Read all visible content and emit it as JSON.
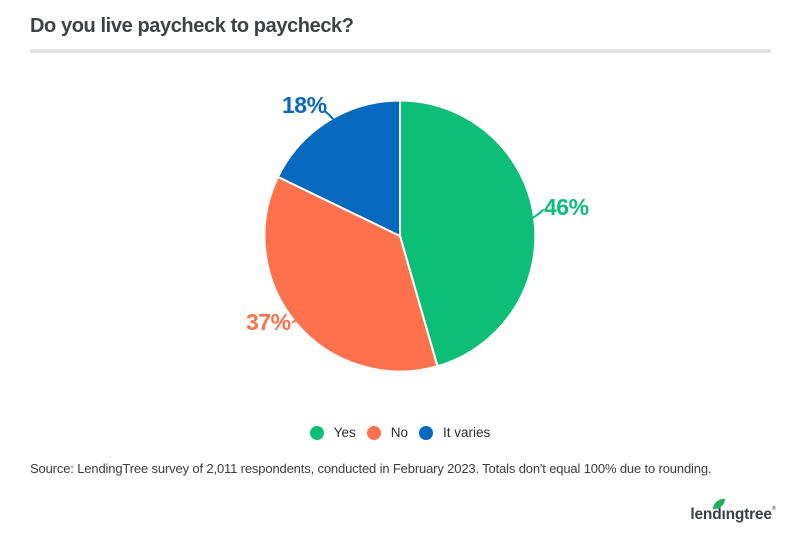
{
  "chart_data": {
    "type": "pie",
    "title": "Do you live paycheck to paycheck?",
    "categories": [
      "Yes",
      "No",
      "It varies"
    ],
    "values": [
      46,
      37,
      18
    ],
    "value_labels": [
      "46%",
      "37%",
      "18%"
    ],
    "colors": [
      "#0dbe78",
      "#fe714d",
      "#0669be"
    ],
    "start_angle_deg": 0,
    "direction": "clockwise",
    "legend_position": "bottom",
    "separator_color": "#ffffff"
  },
  "footer": {
    "source": "Source: LendingTree survey of 2,011 respondents, conducted in February 2023. Totals don't equal 100% due to rounding.",
    "logo": {
      "part1": "lend",
      "part2": "ı",
      "part3": "ngtree",
      "reg": "®"
    }
  }
}
